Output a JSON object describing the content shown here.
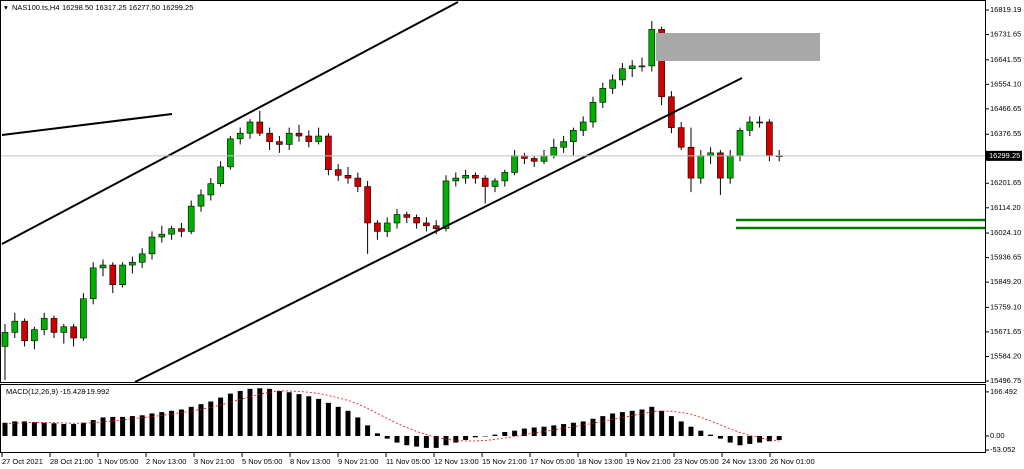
{
  "chart_data": [
    {
      "type": "candlestick",
      "title": "NAS100.ts,H4",
      "ohlc_info": "16298.50 16317.25 16277.50 16299.25",
      "ylim": [
        15489.6,
        16847.7
      ],
      "yticks": [
        16819.19,
        16731.65,
        16641.55,
        {
          "value": 16554.1,
          "label": "16554.10"
        },
        16466.65,
        16376.55,
        16201.65,
        {
          "value": 16114.2,
          "label": "16114.20"
        },
        {
          "value": 16024.1,
          "label": "16024.10"
        },
        15936.65,
        {
          "value": 15849.2,
          "label": "15849.20"
        },
        {
          "value": 15759.1,
          "label": "15759.10"
        },
        15671.65,
        {
          "value": 15584.2,
          "label": "15584.20"
        },
        15496.75
      ],
      "bid": 16299.25,
      "up_color": "#00b000",
      "down_color": "#d00000",
      "x_labels": [
        "27 Oct 2021",
        "28 Oct 21:00",
        "1 Nov 05:00",
        "2 Nov 13:00",
        "3 Nov 21:00",
        "5 Nov 05:00",
        "8 Nov 13:00",
        "9 Nov 21:00",
        "11 Nov 05:00",
        "12 Nov 13:00",
        "15 Nov 21:00",
        "17 Nov 05:00",
        "18 Nov 13:00",
        "19 Nov 21:00",
        "23 Nov 05:00",
        "24 Nov 13:00",
        "26 Nov 01:00"
      ],
      "ohlc": [
        [
          15620,
          15700,
          15500,
          15670
        ],
        [
          15670,
          15740,
          15650,
          15710
        ],
        [
          15710,
          15720,
          15620,
          15640
        ],
        [
          15640,
          15690,
          15610,
          15680
        ],
        [
          15680,
          15740,
          15660,
          15720
        ],
        [
          15720,
          15730,
          15650,
          15670
        ],
        [
          15670,
          15700,
          15630,
          15690
        ],
        [
          15690,
          15700,
          15620,
          15650
        ],
        [
          15650,
          15810,
          15640,
          15790
        ],
        [
          15790,
          15920,
          15770,
          15900
        ],
        [
          15900,
          15930,
          15870,
          15910
        ],
        [
          15910,
          15920,
          15810,
          15840
        ],
        [
          15840,
          15920,
          15830,
          15910
        ],
        [
          15910,
          15940,
          15880,
          15920
        ],
        [
          15920,
          15970,
          15900,
          15950
        ],
        [
          15950,
          16030,
          15930,
          16010
        ],
        [
          16010,
          16050,
          15990,
          16020
        ],
        [
          16020,
          16050,
          16000,
          16040
        ],
        [
          16040,
          16060,
          16010,
          16030
        ],
        [
          16030,
          16140,
          16020,
          16120
        ],
        [
          16120,
          16180,
          16100,
          16160
        ],
        [
          16160,
          16220,
          16140,
          16200
        ],
        [
          16200,
          16280,
          16190,
          16260
        ],
        [
          16260,
          16370,
          16250,
          16360
        ],
        [
          16360,
          16400,
          16340,
          16380
        ],
        [
          16380,
          16430,
          16360,
          16420
        ],
        [
          16420,
          16460,
          16370,
          16380
        ],
        [
          16380,
          16400,
          16320,
          16350
        ],
        [
          16350,
          16370,
          16310,
          16340
        ],
        [
          16340,
          16400,
          16320,
          16380
        ],
        [
          16380,
          16410,
          16350,
          16370
        ],
        [
          16370,
          16390,
          16330,
          16350
        ],
        [
          16350,
          16400,
          16340,
          16370
        ],
        [
          16370,
          16380,
          16230,
          16250
        ],
        [
          16250,
          16270,
          16210,
          16230
        ],
        [
          16230,
          16260,
          16200,
          16220
        ],
        [
          16220,
          16240,
          16170,
          16190
        ],
        [
          16190,
          16210,
          15950,
          16060
        ],
        [
          16060,
          16070,
          16000,
          16030
        ],
        [
          16030,
          16080,
          16010,
          16060
        ],
        [
          16060,
          16110,
          16040,
          16090
        ],
        [
          16090,
          16100,
          16060,
          16080
        ],
        [
          16080,
          16090,
          16040,
          16060
        ],
        [
          16060,
          16080,
          16030,
          16050
        ],
        [
          16050,
          16070,
          16020,
          16040
        ],
        [
          16040,
          16230,
          16030,
          16210
        ],
        [
          16210,
          16240,
          16190,
          16220
        ],
        [
          16220,
          16250,
          16200,
          16230
        ],
        [
          16230,
          16240,
          16200,
          16220
        ],
        [
          16220,
          16230,
          16130,
          16190
        ],
        [
          16190,
          16220,
          16170,
          16210
        ],
        [
          16210,
          16250,
          16190,
          16240
        ],
        [
          16240,
          16320,
          16230,
          16300
        ],
        [
          16300,
          16310,
          16270,
          16290
        ],
        [
          16290,
          16300,
          16260,
          16280
        ],
        [
          16280,
          16320,
          16270,
          16300
        ],
        [
          16300,
          16360,
          16290,
          16330
        ],
        [
          16330,
          16370,
          16310,
          16350
        ],
        [
          16350,
          16400,
          16300,
          16390
        ],
        [
          16390,
          16440,
          16370,
          16420
        ],
        [
          16420,
          16510,
          16400,
          16490
        ],
        [
          16490,
          16560,
          16470,
          16540
        ],
        [
          16540,
          16590,
          16520,
          16570
        ],
        [
          16570,
          16630,
          16550,
          16610
        ],
        [
          16610,
          16640,
          16580,
          16620
        ],
        [
          16620,
          16650,
          16600,
          16620
        ],
        [
          16620,
          16780,
          16600,
          16750
        ],
        [
          16750,
          16760,
          16480,
          16510
        ],
        [
          16510,
          16530,
          16380,
          16400
        ],
        [
          16400,
          16420,
          16320,
          16330
        ],
        [
          16330,
          16400,
          16170,
          16220
        ],
        [
          16220,
          16320,
          16200,
          16300
        ],
        [
          16300,
          16330,
          16270,
          16310
        ],
        [
          16310,
          16320,
          16160,
          16220
        ],
        [
          16220,
          16320,
          16200,
          16300
        ],
        [
          16300,
          16400,
          16280,
          16390
        ],
        [
          16390,
          16440,
          16370,
          16420
        ],
        [
          16420,
          16440,
          16400,
          16420
        ],
        [
          16420,
          16430,
          16280,
          16300
        ],
        [
          16300,
          16320,
          16280,
          16299.25
        ]
      ]
    },
    {
      "type": "macd",
      "title": "MACD(12,26,9)",
      "ylim": [
        -60.5,
        192.4
      ],
      "yticks": [
        166.492,
        {
          "value": 0,
          "label": "0.00"
        },
        -53.052
      ],
      "series": [
        {
          "name": "MACD",
          "color": "#000000",
          "values": [
            50,
            55,
            55,
            52,
            50,
            48,
            45,
            45,
            50,
            60,
            70,
            72,
            72,
            75,
            78,
            85,
            90,
            95,
            100,
            110,
            120,
            130,
            145,
            160,
            170,
            178,
            180,
            178,
            170,
            165,
            158,
            150,
            140,
            125,
            110,
            95,
            70,
            40,
            10,
            -10,
            -25,
            -35,
            -40,
            -45,
            -45,
            -35,
            -25,
            -15,
            -5,
            0,
            5,
            15,
            20,
            28,
            32,
            35,
            40,
            45,
            50,
            55,
            65,
            75,
            85,
            90,
            95,
            100,
            110,
            95,
            75,
            55,
            35,
            20,
            5,
            -10,
            -25,
            -35,
            -30,
            -25,
            -20,
            -15.428
          ]
        },
        {
          "name": "Signal",
          "color": "#ff0000",
          "values": [
            45,
            48,
            50,
            51,
            51,
            50,
            49,
            48,
            48,
            50,
            53,
            57,
            61,
            65,
            69,
            73,
            78,
            83,
            88,
            94,
            101,
            108,
            117,
            127,
            138,
            148,
            158,
            165,
            170,
            170,
            168,
            165,
            160,
            153,
            144,
            134,
            121,
            104,
            85,
            66,
            48,
            32,
            17,
            5,
            -5,
            -12,
            -17,
            -19,
            -19,
            -17,
            -13,
            -8,
            -2,
            5,
            11,
            17,
            23,
            29,
            35,
            41,
            48,
            55,
            63,
            70,
            77,
            84,
            91,
            94,
            93,
            89,
            82,
            70,
            57,
            42,
            27,
            13,
            2,
            -7,
            -14,
            -19.992
          ]
        }
      ]
    }
  ]
}
